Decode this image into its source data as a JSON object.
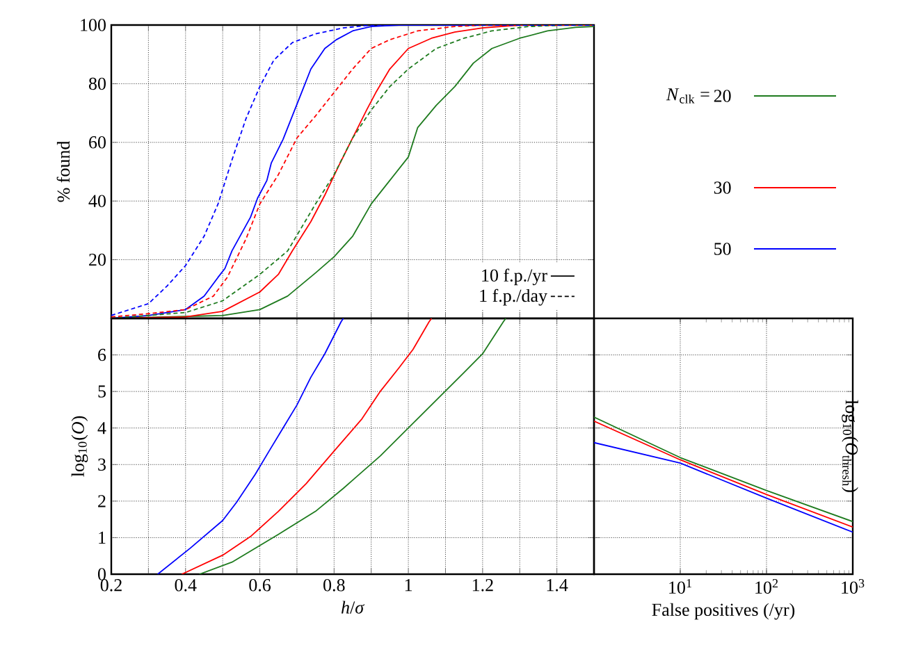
{
  "chart_data": [
    {
      "type": "line",
      "ylabel": "% found",
      "xlim": [
        0.2,
        1.5
      ],
      "ylim": [
        0,
        100
      ],
      "tick_labels": "y",
      "grid": true,
      "legend": "right",
      "legend_title": "*N*$_{clk}$ =",
      "marker": "none",
      "xticks": [
        {
          "value": 0.2,
          "label": null
        },
        {
          "value": 0.3,
          "label": null
        },
        {
          "value": 0.4,
          "label": null
        },
        {
          "value": 0.5,
          "label": null
        },
        {
          "value": 0.6,
          "label": null
        },
        {
          "value": 0.7,
          "label": null
        },
        {
          "value": 0.8,
          "label": null
        },
        {
          "value": 0.9,
          "label": null
        },
        {
          "value": 1.0,
          "label": null
        },
        {
          "value": 1.1,
          "label": null
        },
        {
          "value": 1.2,
          "label": null
        },
        {
          "value": 1.3,
          "label": null
        },
        {
          "value": 1.4,
          "label": null
        }
      ],
      "yticks": [
        20,
        40,
        60,
        80,
        100
      ],
      "annotations": [
        "10 f.p./yr",
        "1 f.p./day"
      ],
      "series": [
        {
          "name": "20",
          "color": "#1e7b1e",
          "line_style": "solid",
          "x": [
            0.2,
            0.5,
            0.6,
            0.675,
            0.75,
            0.8,
            0.85,
            0.9,
            0.95,
            1.0,
            1.025,
            1.075,
            1.125,
            1.175,
            1.225,
            1.3,
            1.375,
            1.45,
            1.5
          ],
          "values": [
            0,
            1,
            3,
            7.6,
            15.5,
            21,
            28,
            39,
            47,
            55,
            65,
            72.6,
            79,
            87,
            92,
            95.5,
            98,
            99.2,
            99.5
          ]
        },
        {
          "name": "30",
          "color": "#ff0000",
          "line_style": "solid",
          "x": [
            0.2,
            0.4,
            0.5,
            0.6,
            0.65,
            0.6875,
            0.7375,
            0.775,
            0.8125,
            0.85,
            0.8875,
            0.9125,
            0.95,
            1.0,
            1.0625,
            1.125,
            1.2,
            1.3,
            1.5
          ],
          "values": [
            0,
            0.5,
            2.4,
            9,
            15,
            23,
            33,
            42,
            52,
            61.5,
            71,
            77,
            85,
            92,
            95.5,
            97.6,
            99,
            100,
            100
          ]
        },
        {
          "name": "50",
          "color": "#0000ff",
          "line_style": "solid",
          "x": [
            0.2,
            0.3,
            0.4,
            0.45,
            0.4875,
            0.506,
            0.525,
            0.575,
            0.594,
            0.619,
            0.631,
            0.6625,
            0.6875,
            0.7125,
            0.7375,
            0.775,
            0.806,
            0.85,
            0.9,
            0.975,
            1.5
          ],
          "values": [
            0,
            1,
            3,
            7.6,
            14,
            17,
            23,
            34.5,
            41,
            47,
            53,
            61,
            69,
            77,
            85,
            92,
            95,
            98,
            99.5,
            100,
            100
          ]
        },
        {
          "color": "#1e7b1e",
          "line_style": "dashed",
          "x": [
            0.2,
            0.4,
            0.5,
            0.6,
            0.675,
            0.75,
            0.8,
            0.85,
            0.9,
            0.95,
            1.0,
            1.075,
            1.15,
            1.225,
            1.325,
            1.425,
            1.5
          ],
          "values": [
            0,
            2,
            6,
            15,
            23,
            39,
            49,
            61.5,
            71,
            79,
            85,
            92,
            95.5,
            98,
            99.5,
            100,
            100
          ]
        },
        {
          "color": "#ff0000",
          "line_style": "dashed",
          "x": [
            0.2,
            0.3,
            0.4,
            0.475,
            0.5125,
            0.5625,
            0.6,
            0.65,
            0.7,
            0.75,
            0.8,
            0.85,
            0.9,
            0.95,
            1.025,
            1.125,
            1.2,
            1.5
          ],
          "values": [
            0.5,
            1.6,
            3,
            7.6,
            14,
            27,
            39,
            49,
            61.5,
            69,
            77,
            85,
            92,
            95,
            98,
            99.5,
            100,
            100
          ]
        },
        {
          "color": "#0000ff",
          "line_style": "dashed",
          "x": [
            0.2,
            0.3,
            0.35,
            0.4,
            0.45,
            0.4875,
            0.525,
            0.5625,
            0.6,
            0.6375,
            0.6875,
            0.75,
            0.825,
            0.9,
            1.5
          ],
          "values": [
            1,
            5,
            11,
            18,
            28,
            39,
            54,
            68,
            79,
            88,
            94,
            97,
            99,
            100,
            100
          ]
        }
      ]
    },
    {
      "type": "line",
      "xlabel": "*h*/*σ*",
      "ylabel": "log$_{10}$(*O*)",
      "xlim": [
        0.2,
        1.5
      ],
      "ylim": [
        0,
        7
      ],
      "grid": true,
      "marker": "none",
      "xticks": [
        0.2,
        {
          "value": 0.3,
          "label": null
        },
        0.4,
        {
          "value": 0.5,
          "label": null
        },
        0.6,
        {
          "value": 0.7,
          "label": null
        },
        0.8,
        {
          "value": 0.9,
          "label": null
        },
        1,
        {
          "value": 1.1,
          "label": null
        },
        1.2,
        {
          "value": 1.3,
          "label": null
        },
        1.4
      ],
      "yticks": [
        0,
        1,
        2,
        3,
        4,
        5,
        6
      ],
      "series": [
        {
          "color": "#1e7b1e",
          "x": [
            0.4375,
            0.525,
            0.65,
            0.75,
            0.825,
            0.925,
            1.0,
            1.075,
            1.15,
            1.2,
            1.256,
            1.2625
          ],
          "values": [
            0,
            0.33,
            1.09,
            1.72,
            2.35,
            3.24,
            4.0,
            4.76,
            5.52,
            6.03,
            6.91,
            7
          ]
        },
        {
          "color": "#ff0000",
          "x": [
            0.39,
            0.5,
            0.575,
            0.65,
            0.725,
            0.8,
            0.875,
            0.925,
            0.975,
            1.0125,
            1.056,
            1.0625
          ],
          "values": [
            0,
            0.52,
            1.03,
            1.72,
            2.48,
            3.37,
            4.25,
            5.01,
            5.65,
            6.15,
            6.91,
            7
          ]
        },
        {
          "color": "#0000ff",
          "x": [
            0.325,
            0.4125,
            0.5,
            0.5375,
            0.5875,
            0.625,
            0.6625,
            0.7,
            0.7375,
            0.775,
            0.819,
            0.825
          ],
          "values": [
            0,
            0.71,
            1.47,
            1.97,
            2.73,
            3.37,
            4.0,
            4.63,
            5.39,
            6.03,
            6.91,
            7
          ]
        }
      ]
    },
    {
      "type": "line",
      "xlabel": "False positives (/yr)",
      "ylabel": "log$_{10}$(*O*$_{thresh}$)",
      "log": "x",
      "xlim": [
        1,
        1000
      ],
      "ylim": [
        0,
        7
      ],
      "grid": true,
      "tick_labels": "x",
      "marker": "none",
      "xticks": [
        {
          "value": 10,
          "label": "10$^{1}$"
        },
        {
          "value": 100,
          "label": "10$^{2}$"
        },
        {
          "value": 1000,
          "label": "10$^{3}$"
        }
      ],
      "yticks": [
        0,
        1,
        2,
        3,
        4,
        5,
        6
      ],
      "series": [
        {
          "color": "#1e7b1e",
          "x": [
            1,
            10,
            100,
            1000
          ],
          "values": [
            4.3,
            3.19,
            2.29,
            1.44
          ]
        },
        {
          "color": "#ff0000",
          "x": [
            1,
            10,
            100,
            1000
          ],
          "values": [
            4.19,
            3.13,
            2.18,
            1.29
          ]
        },
        {
          "color": "#0000ff",
          "x": [
            1,
            10,
            100,
            1000
          ],
          "values": [
            3.6,
            3.04,
            2.08,
            1.15
          ]
        }
      ]
    }
  ]
}
